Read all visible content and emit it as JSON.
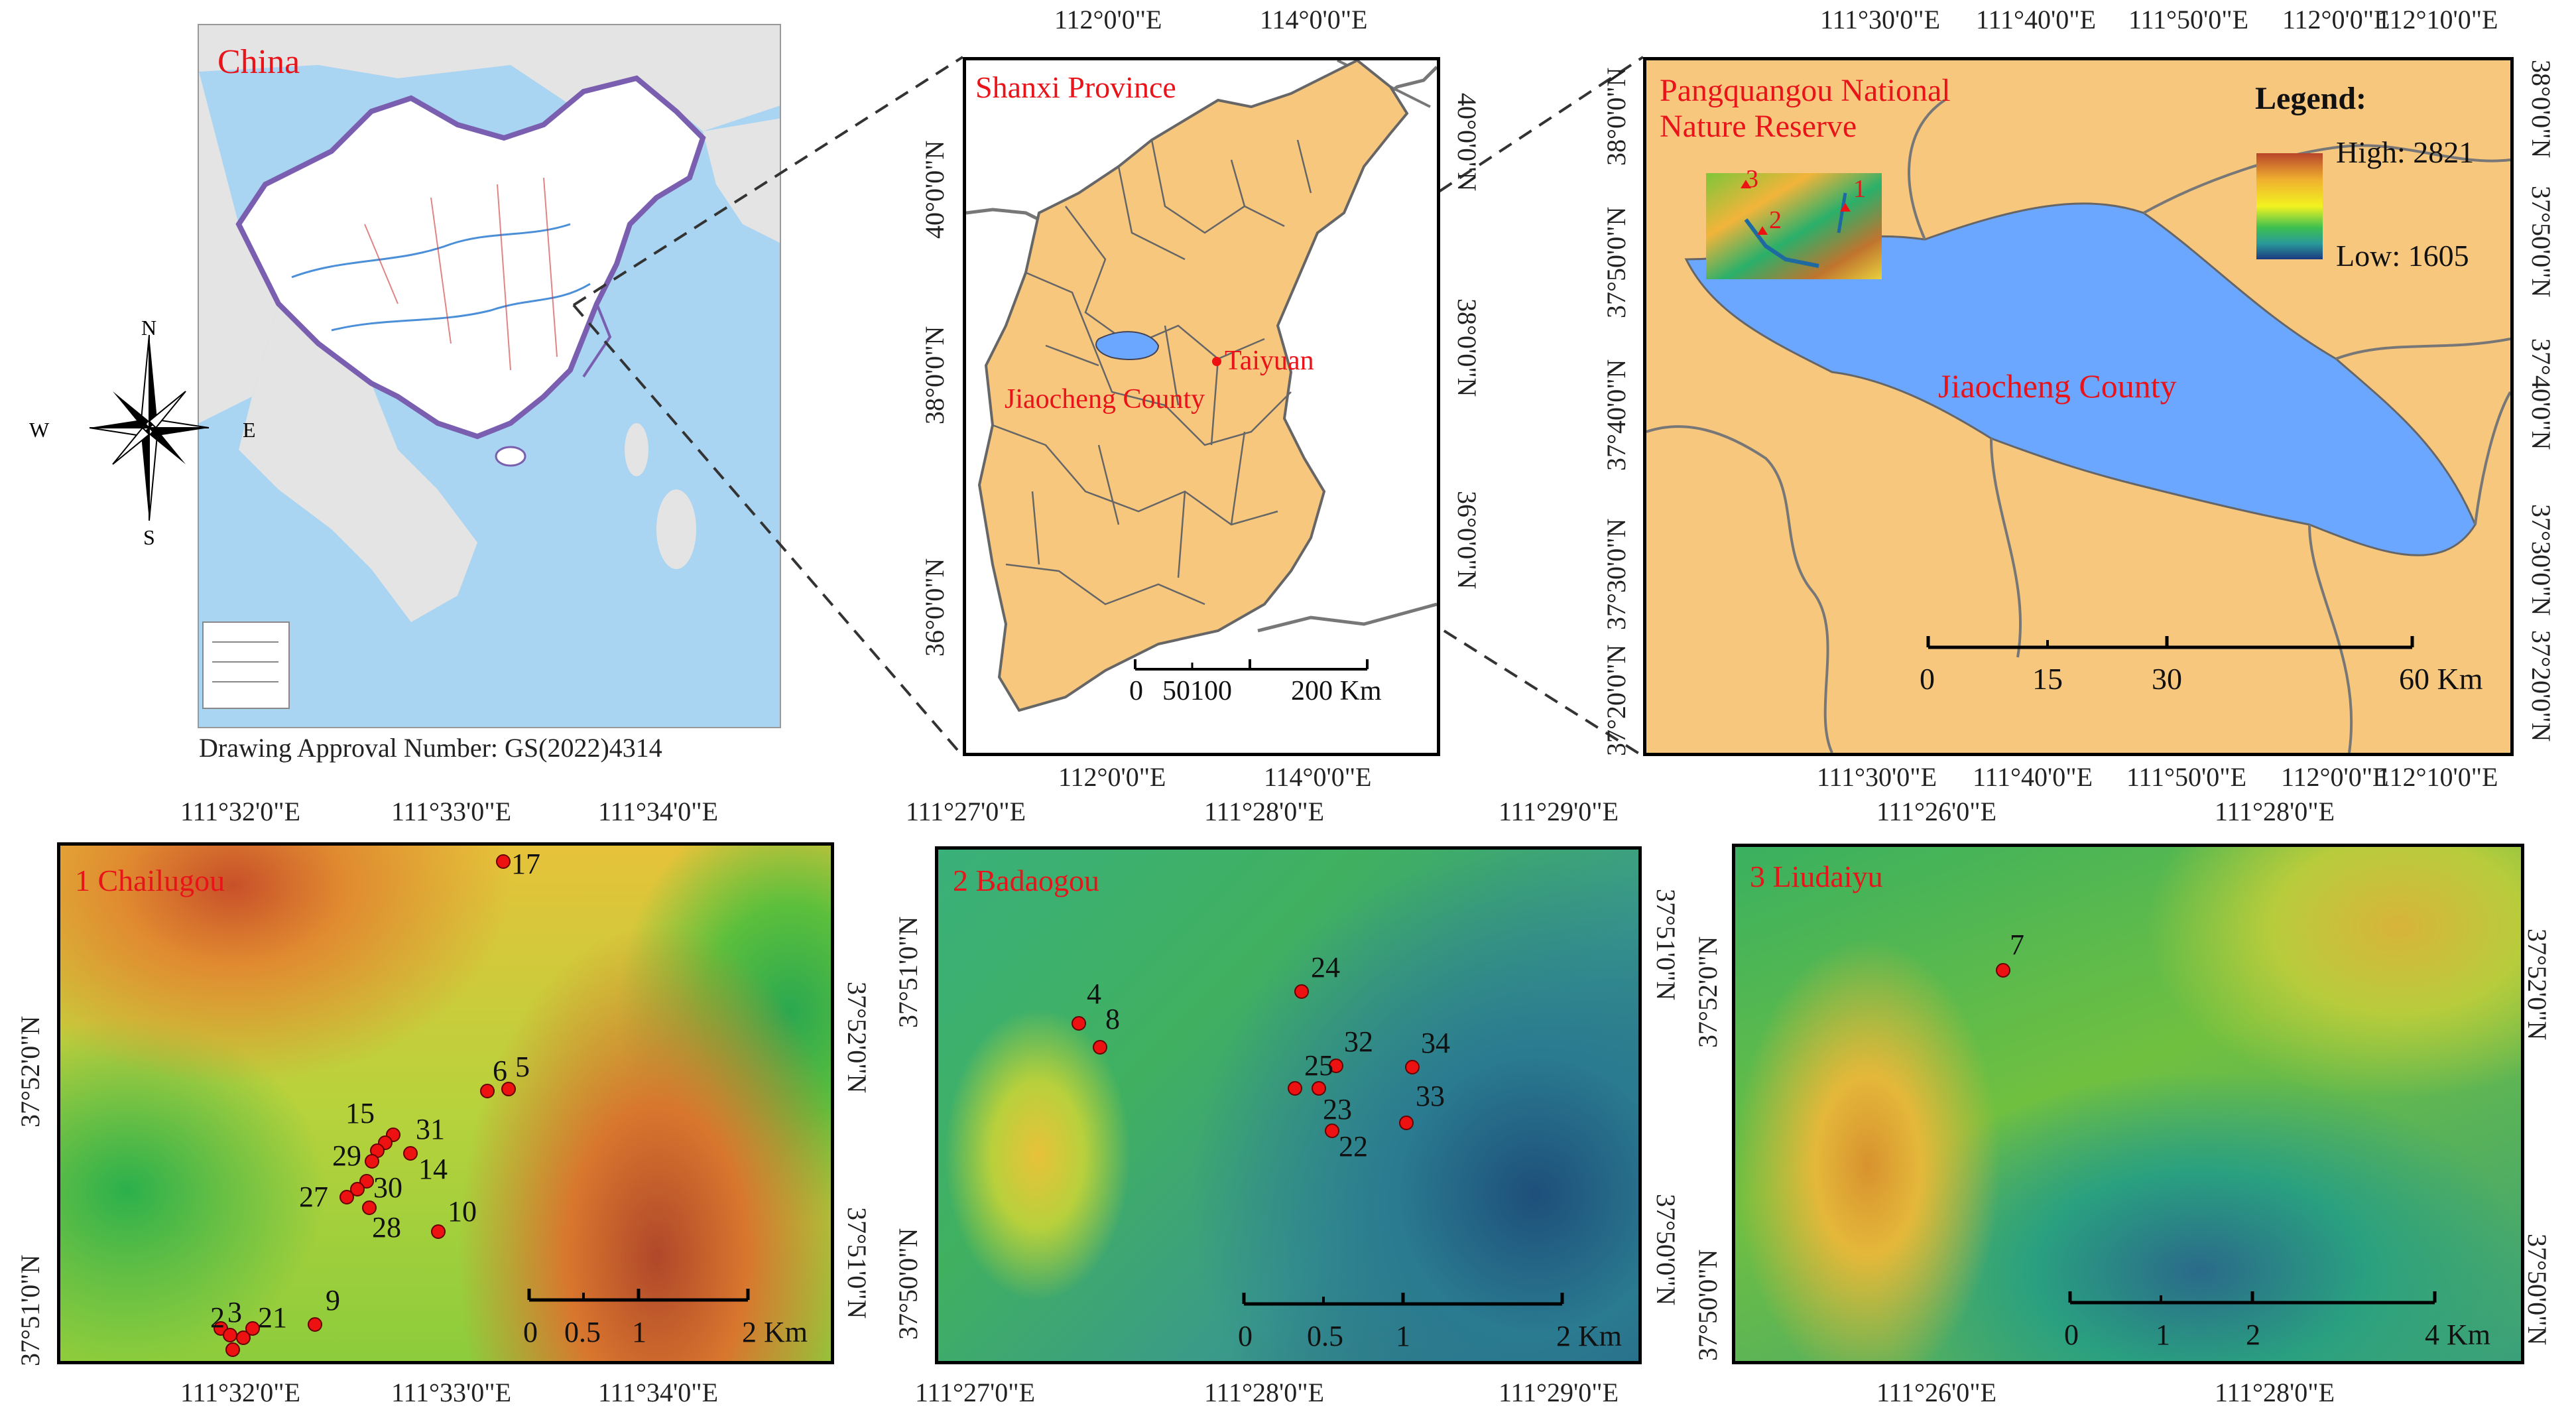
{
  "china_panel": {
    "title": "China",
    "approval": "Drawing Approval Number: GS(2022)4314",
    "compass": {
      "n": "N",
      "s": "S",
      "e": "E",
      "w": "W"
    }
  },
  "shanxi_panel": {
    "title": "Shanxi Province",
    "taiyuan": "Taiyuan",
    "county": "Jiaocheng County",
    "top_ticks": [
      "112°0'0\"E",
      "114°0'0\"E"
    ],
    "bottom_ticks": [
      "112°0'0\"E",
      "114°0'0\"E"
    ],
    "left_ticks": [
      "40°0'0\"N",
      "38°0'0\"N",
      "36°0'0\"N"
    ],
    "right_ticks": [
      "40°0'0\"N",
      "38°0'0\"N",
      "36°0'0\"N"
    ],
    "scale": [
      "0",
      "50100",
      "200 Km"
    ]
  },
  "jiaocheng_panel": {
    "title_line1": "Pangquangou National",
    "title_line2": "Nature Reserve",
    "county": "Jiaocheng County",
    "legend_title": "Legend:",
    "legend_high": "High: 2821",
    "legend_low": "Low: 1605",
    "inset_labels": [
      "1",
      "2",
      "3"
    ],
    "top_ticks": [
      "111°30'0\"E",
      "111°40'0\"E",
      "111°50'0\"E",
      "112°0'0\"E",
      "112°10'0\"E"
    ],
    "bottom_ticks": [
      "111°30'0\"E",
      "111°40'0\"E",
      "111°50'0\"E",
      "112°0'0\"E",
      "112°10'0\"E"
    ],
    "left_ticks": [
      "38°0'0\"N",
      "37°50'0\"N",
      "37°40'0\"N",
      "37°30'0\"N",
      "37°20'0\"N"
    ],
    "right_ticks": [
      "38°0'0\"N",
      "37°50'0\"N",
      "37°40'0\"N",
      "37°30'0\"N",
      "37°20'0\"N"
    ],
    "scale": [
      "0",
      "15",
      "30",
      "60 Km"
    ]
  },
  "chailugou_panel": {
    "title": "1 Chailugou",
    "top_ticks": [
      "111°32'0\"E",
      "111°33'0\"E",
      "111°34'0\"E"
    ],
    "bottom_ticks": [
      "111°32'0\"E",
      "111°33'0\"E",
      "111°34'0\"E"
    ],
    "left_ticks": [
      "37°52'0\"N",
      "37°51'0\"N"
    ],
    "right_ticks": [
      "37°52'0\"N",
      "37°51'0\"N"
    ],
    "scale": [
      "0",
      "0.5",
      "1",
      "2 Km"
    ],
    "points": [
      "17",
      "6",
      "5",
      "15",
      "31",
      "29",
      "14",
      "27",
      "30",
      "28",
      "10",
      "9",
      "2",
      "3",
      "21"
    ]
  },
  "badaogou_panel": {
    "title": "2 Badaogou",
    "top_ticks": [
      "111°27'0\"E",
      "111°28'0\"E",
      "111°29'0\"E"
    ],
    "bottom_ticks": [
      "111°27'0\"E",
      "111°28'0\"E",
      "111°29'0\"E"
    ],
    "left_ticks": [
      "37°51'0\"N",
      "37°50'0\"N"
    ],
    "right_ticks": [
      "37°51'0\"N",
      "37°50'0\"N"
    ],
    "scale": [
      "0",
      "0.5",
      "1",
      "2 Km"
    ],
    "points": [
      "24",
      "4",
      "8",
      "32",
      "34",
      "25",
      "23",
      "33",
      "22"
    ]
  },
  "liudaiyu_panel": {
    "title": "3 Liudaiyu",
    "top_ticks": [
      "111°26'0\"E",
      "111°28'0\"E"
    ],
    "bottom_ticks": [
      "111°26'0\"E",
      "111°28'0\"E"
    ],
    "left_ticks": [
      "37°52'0\"N",
      "37°50'0\"N"
    ],
    "right_ticks": [
      "37°52'0\"N",
      "37°50'0\"N"
    ],
    "scale": [
      "0",
      "1",
      "2",
      "4 Km"
    ],
    "points": [
      "7"
    ]
  },
  "colors": {
    "land": "#f7c77e",
    "county": "#6ba6ff",
    "label_red": "#e8141a",
    "sea": "#a9d4f2"
  }
}
